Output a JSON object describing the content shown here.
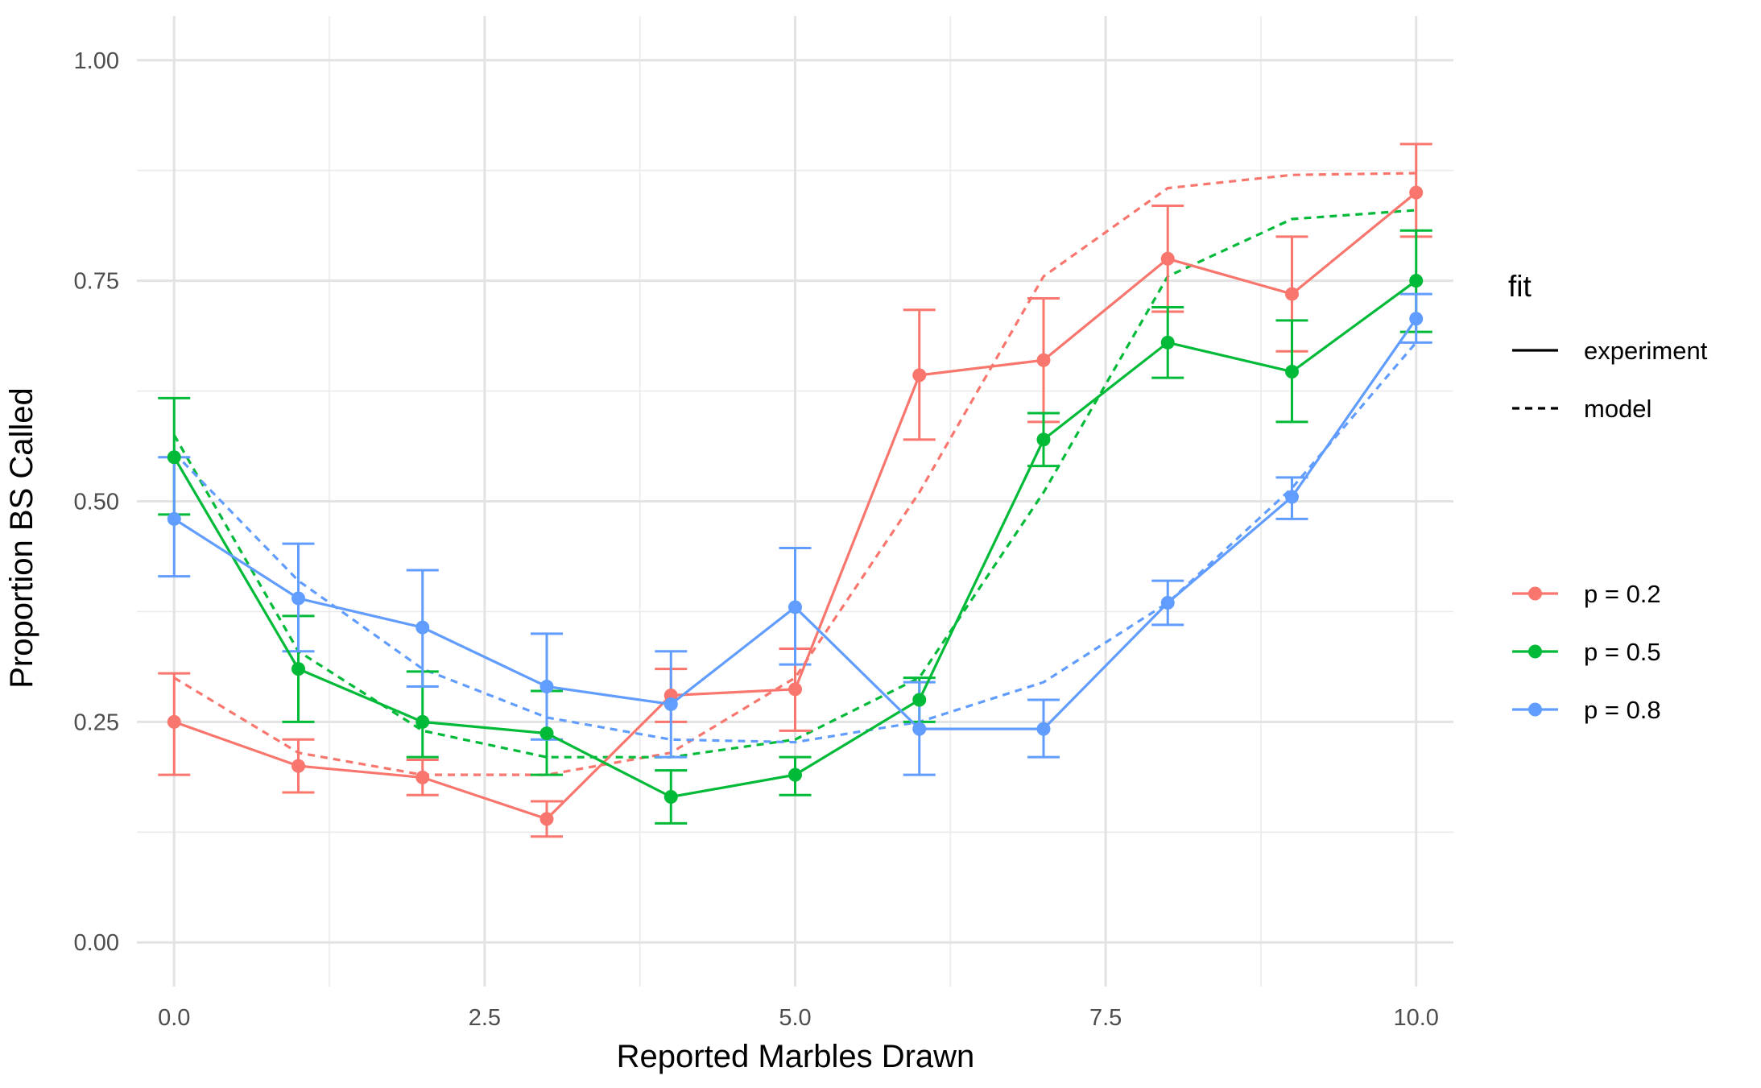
{
  "chart_data": {
    "type": "line",
    "xlabel": "Reported Marbles Drawn",
    "ylabel": "Proportion BS Called",
    "xlim": [
      -0.3,
      10.3
    ],
    "ylim": [
      -0.05,
      1.05
    ],
    "x_ticks": [
      0,
      2.5,
      5,
      7.5,
      10
    ],
    "x_tick_labels": [
      "0.0",
      "2.5",
      "5.0",
      "7.5",
      "10.0"
    ],
    "y_ticks": [
      0,
      0.25,
      0.5,
      0.75,
      1
    ],
    "y_tick_labels": [
      "0.00",
      "0.25",
      "0.50",
      "0.75",
      "1.00"
    ],
    "grid": true,
    "legend_position": "right",
    "x": [
      0,
      1,
      2,
      3,
      4,
      5,
      6,
      7,
      8,
      9,
      10
    ],
    "linetype_legend": {
      "title": "fit",
      "entries": [
        {
          "label": "experiment",
          "style": "solid"
        },
        {
          "label": "model",
          "style": "dashed"
        }
      ]
    },
    "series": [
      {
        "name": "p = 0.2",
        "color": "#F8766D",
        "experiment": [
          0.25,
          0.2,
          0.187,
          0.14,
          0.28,
          0.287,
          0.643,
          0.66,
          0.775,
          0.735,
          0.85
        ],
        "error_low": [
          0.19,
          0.17,
          0.167,
          0.12,
          0.25,
          0.24,
          0.57,
          0.59,
          0.715,
          0.67,
          0.8
        ],
        "error_high": [
          0.305,
          0.23,
          0.207,
          0.16,
          0.31,
          0.333,
          0.717,
          0.73,
          0.835,
          0.8,
          0.905
        ],
        "model": [
          0.3,
          0.215,
          0.19,
          0.19,
          0.215,
          0.3,
          0.51,
          0.755,
          0.855,
          0.87,
          0.872
        ]
      },
      {
        "name": "p = 0.5",
        "color": "#00BA38",
        "experiment": [
          0.55,
          0.31,
          0.25,
          0.237,
          0.165,
          0.19,
          0.275,
          0.57,
          0.68,
          0.647,
          0.75
        ],
        "error_low": [
          0.485,
          0.25,
          0.21,
          0.19,
          0.135,
          0.167,
          0.25,
          0.54,
          0.64,
          0.59,
          0.692
        ],
        "error_high": [
          0.617,
          0.37,
          0.307,
          0.285,
          0.195,
          0.21,
          0.3,
          0.6,
          0.72,
          0.705,
          0.807
        ],
        "model": [
          0.575,
          0.33,
          0.24,
          0.21,
          0.21,
          0.23,
          0.3,
          0.51,
          0.755,
          0.82,
          0.83
        ]
      },
      {
        "name": "p = 0.8",
        "color": "#619CFF",
        "experiment": [
          0.48,
          0.39,
          0.357,
          0.29,
          0.27,
          0.38,
          0.242,
          0.242,
          0.385,
          0.505,
          0.707
        ],
        "error_low": [
          0.415,
          0.33,
          0.29,
          0.23,
          0.21,
          0.315,
          0.19,
          0.21,
          0.36,
          0.48,
          0.68
        ],
        "error_high": [
          0.55,
          0.452,
          0.422,
          0.35,
          0.33,
          0.447,
          0.295,
          0.275,
          0.41,
          0.527,
          0.735
        ],
        "model": [
          0.555,
          0.41,
          0.31,
          0.255,
          0.23,
          0.227,
          0.25,
          0.295,
          0.385,
          0.515,
          0.68
        ]
      }
    ]
  }
}
